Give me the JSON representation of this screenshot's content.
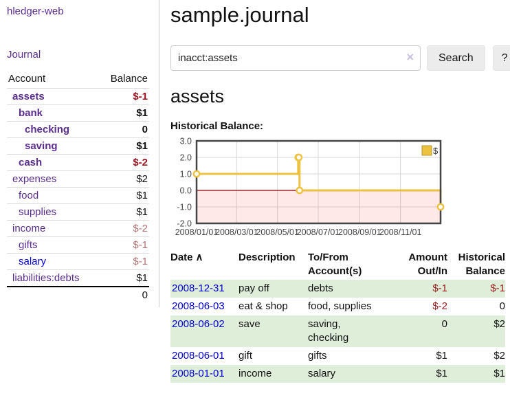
{
  "brand": "hledger-web",
  "nav": {
    "journal": "Journal"
  },
  "colors": {
    "link_purple": "#5b2d90",
    "link_blue": "#0000dd",
    "date_link_blue": "#0000cc",
    "negative_strong": "#9c1420",
    "negative_soft": "#b47474",
    "register_negative": "#961b1b",
    "row_stripe_green": "#dfeed9"
  },
  "sidebar": {
    "header": {
      "account": "Account",
      "balance": "Balance"
    },
    "accounts": [
      {
        "name": "assets",
        "balance": "$-1"
      },
      {
        "name": "bank",
        "balance": "$1"
      },
      {
        "name": "checking",
        "balance": "0"
      },
      {
        "name": "saving",
        "balance": "$1"
      },
      {
        "name": "cash",
        "balance": "$-2"
      },
      {
        "name": "expenses",
        "balance": "$2"
      },
      {
        "name": "food",
        "balance": "$1"
      },
      {
        "name": "supplies",
        "balance": "$1"
      },
      {
        "name": "income",
        "balance": "$-2"
      },
      {
        "name": "gifts",
        "balance": "$-1"
      },
      {
        "name": "salary",
        "balance": "$-1"
      },
      {
        "name": "liabilities:debts",
        "balance": "$1"
      }
    ],
    "total": "0"
  },
  "header": {
    "title": "sample.journal"
  },
  "search": {
    "value": "inacct:assets",
    "clear_glyph": "×",
    "button_label": "Search",
    "help_label": "?"
  },
  "register": {
    "account_heading": "assets",
    "chart_heading": "Historical Balance:",
    "columns": {
      "date": "Date",
      "sort_indicator": "∧",
      "description": "Description",
      "tofrom_line1": "To/From",
      "tofrom_line2": "Account(s)",
      "amount_line1": "Amount",
      "amount_line2": "Out/In",
      "balance_line1": "Historical",
      "balance_line2": "Balance"
    },
    "rows": [
      {
        "date": "2008-12-31",
        "description": "pay off",
        "accounts": "debts",
        "amount": "$-1",
        "balance": "$-1"
      },
      {
        "date": "2008-06-03",
        "description": "eat & shop",
        "accounts": "food, supplies",
        "amount": "$-2",
        "balance": "0"
      },
      {
        "date": "2008-06-02",
        "description": "save",
        "accounts": "saving, checking",
        "amount": "0",
        "balance": "$2"
      },
      {
        "date": "2008-06-01",
        "description": "gift",
        "accounts": "gifts",
        "amount": "$1",
        "balance": "$2"
      },
      {
        "date": "2008-01-01",
        "description": "income",
        "accounts": "salary",
        "amount": "$1",
        "balance": "$1"
      }
    ]
  },
  "chart_data": {
    "type": "line",
    "step": true,
    "title": "Historical Balance:",
    "series": [
      {
        "name": "$",
        "points": [
          [
            "2008-01-01",
            1
          ],
          [
            "2008-06-01",
            2
          ],
          [
            "2008-06-02",
            2
          ],
          [
            "2008-06-03",
            0
          ],
          [
            "2008-12-31",
            -1
          ]
        ]
      }
    ],
    "x_ticks": [
      "2008/01/01",
      "2008/03/01",
      "2008/05/01",
      "2008/07/01",
      "2008/09/01",
      "2008/11/01"
    ],
    "y_ticks": [
      3.0,
      2.0,
      1.0,
      0.0,
      -1.0,
      -2.0
    ],
    "xlim": [
      "2008-01-01",
      "2008-12-31"
    ],
    "ylim": [
      -2,
      3
    ],
    "legend": {
      "label": "$",
      "position": "top-right"
    },
    "grid": true,
    "colors": {
      "line": "#edc240",
      "marker_fill": "#ffffff",
      "legend_border": "#b89530",
      "zero_line": "#8b0000",
      "negative_region": "rgba(255,0,0,0.09)",
      "gridline": "#d7d7d7",
      "border": "#444444",
      "tick_text": "#444444"
    }
  }
}
